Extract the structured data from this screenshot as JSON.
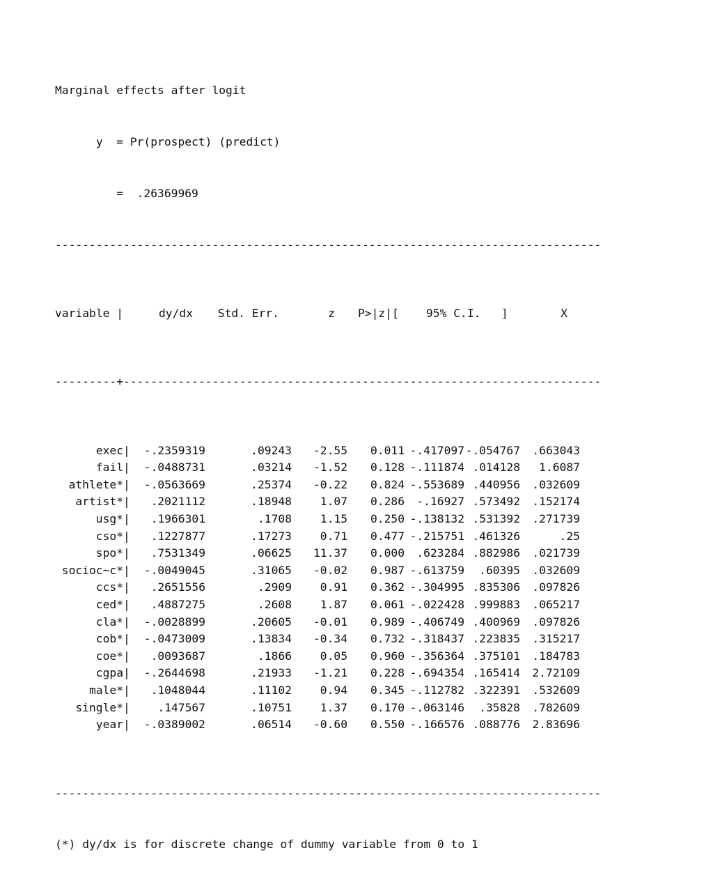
{
  "header": {
    "line1": "Marginal effects after logit",
    "line2": "      y  = Pr(prospect) (predict)",
    "line3": "         =  .26369969"
  },
  "rule_top": "--------------------------------------------------------------------------------",
  "columns": {
    "variable": "variable |",
    "dydx": "dy/dx",
    "se": "Std. Err.",
    "z": "z",
    "p": "P>|z|",
    "ci": "[    95% C.I.   ]",
    "x": "X"
  },
  "rule_header": "---------+----------------------------------------------------------------------",
  "rows": [
    {
      "variable": "exec",
      "bar": "|",
      "dydx": "-.2359319",
      "se": ".09243",
      "z": "-2.55",
      "p": "0.011",
      "lo": "-.417097",
      "hi": "-.054767",
      "x": ".663043"
    },
    {
      "variable": "fail",
      "bar": "|",
      "dydx": "-.0488731",
      "se": ".03214",
      "z": "-1.52",
      "p": "0.128",
      "lo": "-.111874",
      "hi": ".014128",
      "x": "1.6087"
    },
    {
      "variable": "athlete*",
      "bar": "|",
      "dydx": "-.0563669",
      "se": ".25374",
      "z": "-0.22",
      "p": "0.824",
      "lo": "-.553689",
      "hi": ".440956",
      "x": ".032609"
    },
    {
      "variable": "artist*",
      "bar": "|",
      "dydx": ".2021112",
      "se": ".18948",
      "z": "1.07",
      "p": "0.286",
      "lo": "-.16927",
      "hi": ".573492",
      "x": ".152174"
    },
    {
      "variable": "usg*",
      "bar": "|",
      "dydx": ".1966301",
      "se": ".1708",
      "z": "1.15",
      "p": "0.250",
      "lo": "-.138132",
      "hi": ".531392",
      "x": ".271739"
    },
    {
      "variable": "cso*",
      "bar": "|",
      "dydx": ".1227877",
      "se": ".17273",
      "z": "0.71",
      "p": "0.477",
      "lo": "-.215751",
      "hi": ".461326",
      "x": ".25"
    },
    {
      "variable": "spo*",
      "bar": "|",
      "dydx": ".7531349",
      "se": ".06625",
      "z": "11.37",
      "p": "0.000",
      "lo": ".623284",
      "hi": ".882986",
      "x": ".021739"
    },
    {
      "variable": "socioc~c*",
      "bar": "|",
      "dydx": "-.0049045",
      "se": ".31065",
      "z": "-0.02",
      "p": "0.987",
      "lo": "-.613759",
      "hi": ".60395",
      "x": ".032609"
    },
    {
      "variable": "ccs*",
      "bar": "|",
      "dydx": ".2651556",
      "se": ".2909",
      "z": "0.91",
      "p": "0.362",
      "lo": "-.304995",
      "hi": ".835306",
      "x": ".097826"
    },
    {
      "variable": "ced*",
      "bar": "|",
      "dydx": ".4887275",
      "se": ".2608",
      "z": "1.87",
      "p": "0.061",
      "lo": "-.022428",
      "hi": ".999883",
      "x": ".065217"
    },
    {
      "variable": "cla*",
      "bar": "|",
      "dydx": "-.0028899",
      "se": ".20605",
      "z": "-0.01",
      "p": "0.989",
      "lo": "-.406749",
      "hi": ".400969",
      "x": ".097826"
    },
    {
      "variable": "cob*",
      "bar": "|",
      "dydx": "-.0473009",
      "se": ".13834",
      "z": "-0.34",
      "p": "0.732",
      "lo": "-.318437",
      "hi": ".223835",
      "x": ".315217"
    },
    {
      "variable": "coe*",
      "bar": "|",
      "dydx": ".0093687",
      "se": ".1866",
      "z": "0.05",
      "p": "0.960",
      "lo": "-.356364",
      "hi": ".375101",
      "x": ".184783"
    },
    {
      "variable": "cgpa",
      "bar": "|",
      "dydx": "-.2644698",
      "se": ".21933",
      "z": "-1.21",
      "p": "0.228",
      "lo": "-.694354",
      "hi": ".165414",
      "x": "2.72109"
    },
    {
      "variable": "male*",
      "bar": "|",
      "dydx": ".1048044",
      "se": ".11102",
      "z": "0.94",
      "p": "0.345",
      "lo": "-.112782",
      "hi": ".322391",
      "x": ".532609"
    },
    {
      "variable": "single*",
      "bar": "|",
      "dydx": ".147567",
      "se": ".10751",
      "z": "1.37",
      "p": "0.170",
      "lo": "-.063146",
      "hi": ".35828",
      "x": ".782609"
    },
    {
      "variable": "year",
      "bar": "|",
      "dydx": "-.0389002",
      "se": ".06514",
      "z": "-0.60",
      "p": "0.550",
      "lo": "-.166576",
      "hi": ".088776",
      "x": "2.83696"
    }
  ],
  "rule_bottom": "--------------------------------------------------------------------------------",
  "footnote": "(*) dy/dx is for discrete change of dummy variable from 0 to 1"
}
